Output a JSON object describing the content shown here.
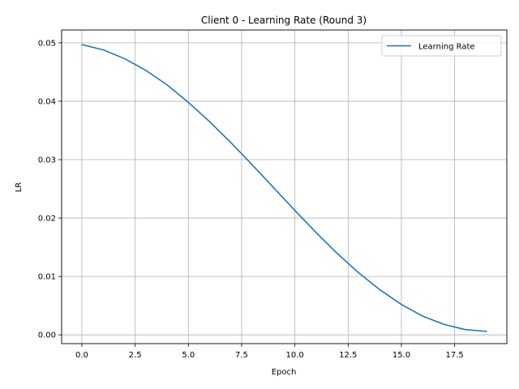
{
  "chart_data": {
    "type": "line",
    "title": "Client 0 - Learning Rate (Round 3)",
    "xlabel": "Epoch",
    "ylabel": "LR",
    "xlim": [
      -0.95,
      19.95
    ],
    "ylim": [
      -0.0015,
      0.0522
    ],
    "xticks": [
      0.0,
      2.5,
      5.0,
      7.5,
      10.0,
      12.5,
      15.0,
      17.5
    ],
    "xtick_labels": [
      "0.0",
      "2.5",
      "5.0",
      "7.5",
      "10.0",
      "12.5",
      "15.0",
      "17.5"
    ],
    "yticks": [
      0.0,
      0.01,
      0.02,
      0.03,
      0.04,
      0.05
    ],
    "ytick_labels": [
      "0.00",
      "0.01",
      "0.02",
      "0.03",
      "0.04",
      "0.05"
    ],
    "grid": true,
    "legend_position": "top-right",
    "series": [
      {
        "name": "Learning Rate",
        "color": "#1f77b4",
        "x": [
          0,
          1,
          2,
          3,
          4,
          5,
          6,
          7,
          8,
          9,
          10,
          11,
          12,
          13,
          14,
          15,
          16,
          17,
          18,
          19
        ],
        "values": [
          0.0497,
          0.0488,
          0.0473,
          0.0453,
          0.0428,
          0.0398,
          0.0365,
          0.0329,
          0.0291,
          0.0252,
          0.0213,
          0.0175,
          0.0139,
          0.0106,
          0.0077,
          0.0052,
          0.0032,
          0.0018,
          0.0009,
          0.0006
        ]
      }
    ]
  }
}
